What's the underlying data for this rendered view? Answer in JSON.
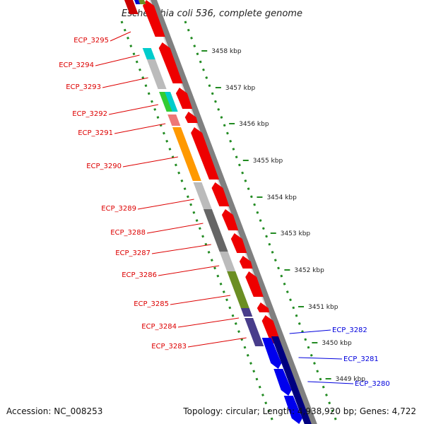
{
  "title": "Escherichia coli 536, complete genome",
  "footer": {
    "accession": "Accession: NC_008253",
    "topology": "Topology: circular; Length: 4,938,920 bp; Genes: 4,722"
  },
  "ticks": [
    {
      "label": "3458 kbp"
    },
    {
      "label": "3457 kbp"
    },
    {
      "label": "3456 kbp"
    },
    {
      "label": "3455 kbp"
    },
    {
      "label": "3454 kbp"
    },
    {
      "label": "3453 kbp"
    },
    {
      "label": "3452 kbp"
    },
    {
      "label": "3451 kbp"
    },
    {
      "label": "3450 kbp"
    },
    {
      "label": "3449 kbp"
    }
  ],
  "gene_labels": [
    {
      "name": "ECP_3295",
      "color": "#dd0000"
    },
    {
      "name": "ECP_3294",
      "color": "#dd0000"
    },
    {
      "name": "ECP_3293",
      "color": "#dd0000"
    },
    {
      "name": "ECP_3292",
      "color": "#dd0000"
    },
    {
      "name": "ECP_3291",
      "color": "#dd0000"
    },
    {
      "name": "ECP_3290",
      "color": "#dd0000"
    },
    {
      "name": "ECP_3289",
      "color": "#dd0000"
    },
    {
      "name": "ECP_3288",
      "color": "#dd0000"
    },
    {
      "name": "ECP_3287",
      "color": "#dd0000"
    },
    {
      "name": "ECP_3286",
      "color": "#dd0000"
    },
    {
      "name": "ECP_3285",
      "color": "#dd0000"
    },
    {
      "name": "ECP_3284",
      "color": "#dd0000"
    },
    {
      "name": "ECP_3283",
      "color": "#dd0000"
    },
    {
      "name": "ECP_3282",
      "color": "#0000dd"
    },
    {
      "name": "ECP_3281",
      "color": "#0000dd"
    },
    {
      "name": "ECP_3280",
      "color": "#0000dd"
    }
  ],
  "colors": {
    "forward_strand": "#ee0000",
    "reverse_strand": "#0000dd",
    "backbone": "#808080",
    "tick_green": "#228b22",
    "cog": [
      "#00cccc",
      "#bbbbbb",
      "#33cc33",
      "#ee7777",
      "#ff9900",
      "#666666",
      "#6b8e23",
      "#483d8b",
      "#000080"
    ]
  }
}
